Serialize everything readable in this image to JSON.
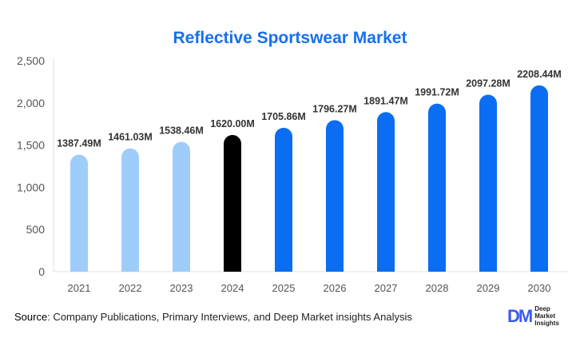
{
  "chart_data": {
    "type": "bar",
    "title": "Reflective Sportswear Market",
    "categories": [
      "2021",
      "2022",
      "2023",
      "2024",
      "2025",
      "2026",
      "2027",
      "2028",
      "2029",
      "2030"
    ],
    "values": [
      1387.49,
      1461.03,
      1538.46,
      1620.0,
      1705.86,
      1796.27,
      1891.47,
      1991.72,
      2097.28,
      2208.44
    ],
    "data_labels": [
      "1387.49M",
      "1461.03M",
      "1538.46M",
      "1620.00M",
      "1705.86M",
      "1796.27M",
      "1891.47M",
      "1991.72M",
      "2097.28M",
      "2208.44M"
    ],
    "ylim": [
      0,
      2500
    ],
    "yticks": [
      0,
      500,
      1000,
      1500,
      2000,
      2500
    ],
    "ytick_labels": [
      "0",
      "500",
      "1,000",
      "1,500",
      "2,000",
      "2,500"
    ],
    "xlabel": "",
    "ylabel": "",
    "grid": false,
    "colors": {
      "historical": "#9fcdfb",
      "base_year": "#000000",
      "forecast": "#0b6ef2"
    },
    "bar_color_groups": [
      "historical",
      "historical",
      "historical",
      "base_year",
      "forecast",
      "forecast",
      "forecast",
      "forecast",
      "forecast",
      "forecast"
    ]
  },
  "source": {
    "label": "Source",
    "text": ": Company Publications, Primary Interviews, and Deep Market insights Analysis"
  },
  "logo": {
    "mark": "DM",
    "text": "Deep Market Insights"
  }
}
